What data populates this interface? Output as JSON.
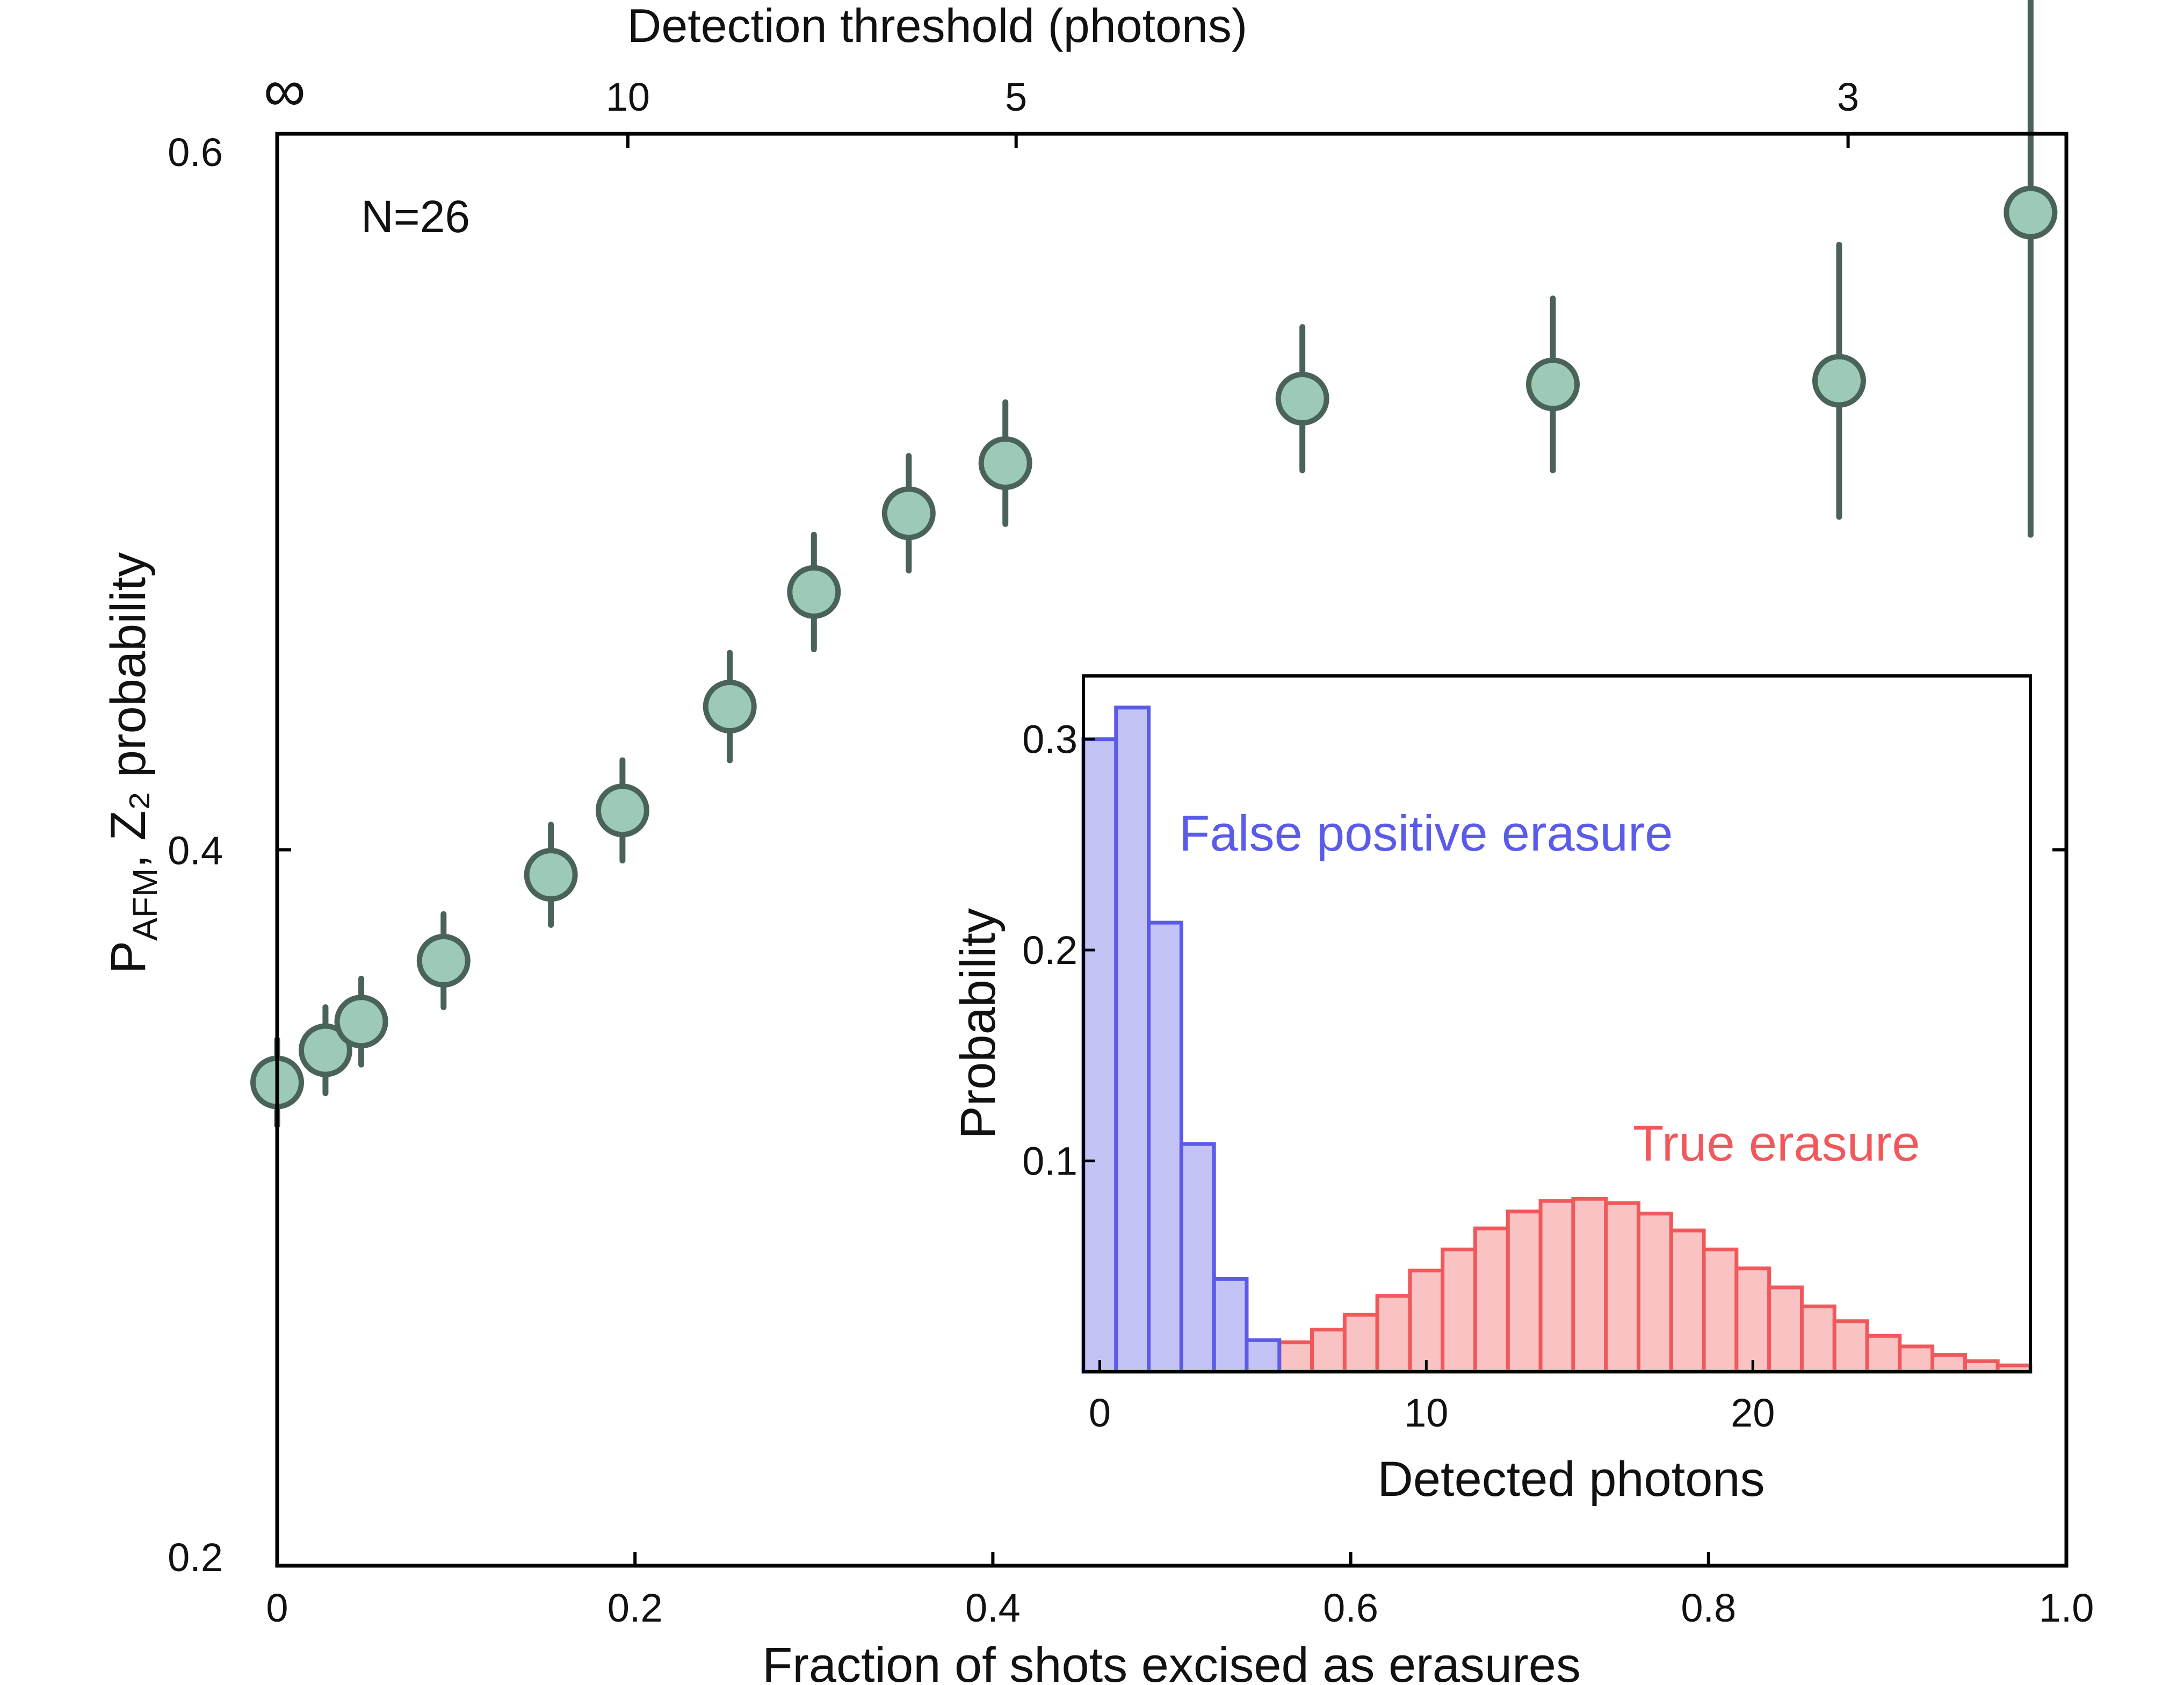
{
  "chart_data": [
    {
      "type": "scatter",
      "title": "",
      "xlabel": "Fraction of shots excised as erasures",
      "ylabel_main": "P",
      "ylabel_sub": "AFM",
      "ylabel_rest": ", Z₂ probability",
      "top_xlabel": "Detection threshold (photons)",
      "annotation": "N=26",
      "xlim": [
        0,
        1.0
      ],
      "ylim": [
        0.2,
        0.6
      ],
      "xticks": [
        0,
        0.2,
        0.4,
        0.6,
        0.8,
        1.0
      ],
      "xtick_labels": [
        "0",
        "0.2",
        "0.4",
        "0.6",
        "0.8",
        "1.0"
      ],
      "yticks": [
        0.2,
        0.4,
        0.6
      ],
      "ytick_labels": [
        "0.2",
        "0.4",
        "0.6"
      ],
      "top_ticks": [
        {
          "x": 0.0,
          "label": "∞"
        },
        {
          "x": 0.196,
          "label": "10"
        },
        {
          "x": 0.413,
          "label": "5"
        },
        {
          "x": 0.878,
          "label": "3"
        }
      ],
      "marker_fill": "#9ccab7",
      "marker_edge": "#4a6358",
      "points": [
        {
          "x": 0.0,
          "y": 0.335,
          "err": 0.012
        },
        {
          "x": 0.027,
          "y": 0.344,
          "err": 0.012
        },
        {
          "x": 0.047,
          "y": 0.352,
          "err": 0.012
        },
        {
          "x": 0.093,
          "y": 0.369,
          "err": 0.013
        },
        {
          "x": 0.153,
          "y": 0.393,
          "err": 0.014
        },
        {
          "x": 0.193,
          "y": 0.411,
          "err": 0.014
        },
        {
          "x": 0.253,
          "y": 0.44,
          "err": 0.015
        },
        {
          "x": 0.3,
          "y": 0.472,
          "err": 0.016
        },
        {
          "x": 0.353,
          "y": 0.494,
          "err": 0.016
        },
        {
          "x": 0.407,
          "y": 0.508,
          "err": 0.017
        },
        {
          "x": 0.573,
          "y": 0.526,
          "err": 0.02
        },
        {
          "x": 0.713,
          "y": 0.53,
          "err": 0.024
        },
        {
          "x": 0.873,
          "y": 0.531,
          "err": 0.038
        },
        {
          "x": 0.98,
          "y": 0.578,
          "err": 0.09
        }
      ]
    },
    {
      "type": "bar",
      "title": "",
      "xlabel": "Detected photons",
      "ylabel": "Probability",
      "xlim": [
        -0.5,
        28.5
      ],
      "ylim": [
        0,
        0.33
      ],
      "xticks": [
        0,
        10,
        20
      ],
      "xtick_labels": [
        "0",
        "10",
        "20"
      ],
      "yticks": [
        0.1,
        0.2,
        0.3
      ],
      "ytick_labels": [
        "0.1",
        "0.2",
        "0.3"
      ],
      "series": [
        {
          "name": "False positive erasure",
          "color": "#5b5bea",
          "fill": "#c3c3f6",
          "x": [
            0,
            1,
            2,
            3,
            4,
            5
          ],
          "values": [
            0.3,
            0.315,
            0.213,
            0.108,
            0.044,
            0.015
          ]
        },
        {
          "name": "True erasure",
          "color": "#f0595b",
          "fill": "#f9c3c3",
          "x": [
            1,
            2,
            3,
            4,
            5,
            6,
            7,
            8,
            9,
            10,
            11,
            12,
            13,
            14,
            15,
            16,
            17,
            18,
            19,
            20,
            21,
            22,
            23,
            24,
            25,
            26,
            27,
            28
          ],
          "values": [
            0.001,
            0.002,
            0.003,
            0.005,
            0.009,
            0.014,
            0.02,
            0.027,
            0.036,
            0.048,
            0.058,
            0.068,
            0.076,
            0.081,
            0.082,
            0.08,
            0.075,
            0.067,
            0.058,
            0.049,
            0.04,
            0.031,
            0.024,
            0.017,
            0.012,
            0.008,
            0.005,
            0.003
          ]
        }
      ]
    }
  ]
}
